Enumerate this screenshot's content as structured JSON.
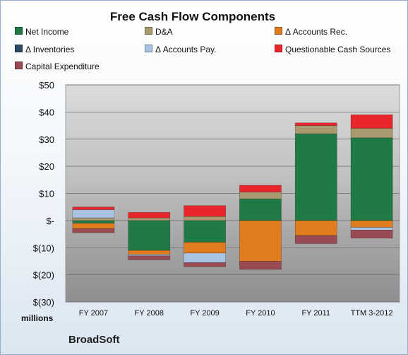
{
  "chart_data": {
    "type": "bar",
    "stacked": true,
    "title": "Free Cash Flow Components",
    "company": "BroadSoft",
    "units_label": "millions",
    "categories": [
      "FY 2007",
      "FY 2008",
      "FY 2009",
      "FY 2010",
      "FY 2011",
      "TTM 3-2012"
    ],
    "ylim": [
      -30,
      50
    ],
    "yticks": [
      "$(30)",
      "$(20)",
      "$(10)",
      "$-",
      "$10",
      "$20",
      "$30",
      "$40",
      "$50"
    ],
    "ytick_values": [
      -30,
      -20,
      -10,
      0,
      10,
      20,
      30,
      40,
      50
    ],
    "grid": true,
    "legend_position": "top",
    "series": [
      {
        "name": "Net Income",
        "color": "#1f7a45",
        "values": [
          -1.0,
          -11.0,
          -8.0,
          8.0,
          32.0,
          30.5
        ]
      },
      {
        "name": "D&A",
        "color": "#a89a6e",
        "values": [
          1.0,
          1.0,
          1.5,
          2.5,
          3.0,
          3.5
        ]
      },
      {
        "name": "Δ Accounts Rec.",
        "color": "#e07c1e",
        "values": [
          -2.0,
          -1.5,
          -4.0,
          -15.0,
          -5.5,
          -2.5
        ]
      },
      {
        "name": "Δ Inventories",
        "color": "#2f4b63",
        "values": [
          0,
          0,
          0,
          0,
          0,
          0
        ]
      },
      {
        "name": "Δ Accounts Pay.",
        "color": "#a9c3e3",
        "values": [
          3.0,
          -0.5,
          -3.5,
          0,
          0,
          -1.0
        ]
      },
      {
        "name": "Questionable Cash Sources",
        "color": "#e8262c",
        "values": [
          1.0,
          2.0,
          4.0,
          2.5,
          1.0,
          5.0
        ]
      },
      {
        "name": "Capital Expenditure",
        "color": "#9a4a52",
        "values": [
          -1.5,
          -1.5,
          -1.5,
          -3.0,
          -3.0,
          -3.0
        ]
      }
    ]
  }
}
